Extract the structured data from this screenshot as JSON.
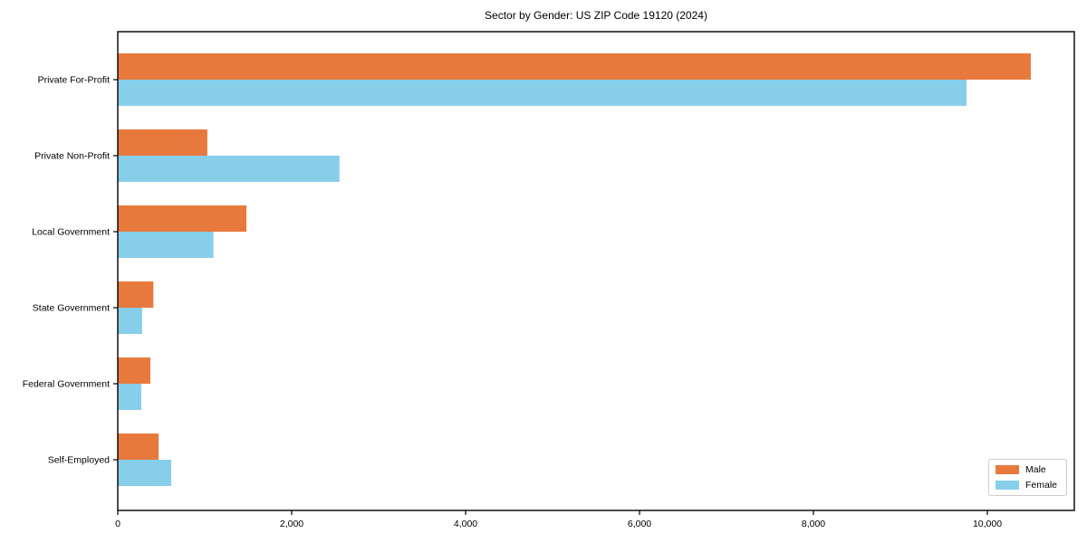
{
  "chart_data": {
    "type": "bar",
    "orientation": "horizontal",
    "title": "Sector by Gender: US ZIP Code 19120 (2024)",
    "categories": [
      "Private For-Profit",
      "Private Non-Profit",
      "Local Government",
      "State Government",
      "Federal Government",
      "Self-Employed"
    ],
    "series": [
      {
        "name": "Male",
        "color": "#e8793d",
        "values": [
          10500,
          1030,
          1480,
          410,
          375,
          470
        ]
      },
      {
        "name": "Female",
        "color": "#87ceeb",
        "values": [
          9760,
          2550,
          1100,
          280,
          270,
          615
        ]
      }
    ],
    "xlabel": "",
    "ylabel": "",
    "xlim": [
      0,
      11000
    ],
    "xtick_values": [
      0,
      2000,
      4000,
      6000,
      8000,
      10000
    ],
    "xtick_labels": [
      "0",
      "2,000",
      "4,000",
      "6,000",
      "8,000",
      "10,000"
    ],
    "grid": false,
    "legend_position": "lower right",
    "axis_color": "#000000",
    "background_color": "#ffffff"
  }
}
